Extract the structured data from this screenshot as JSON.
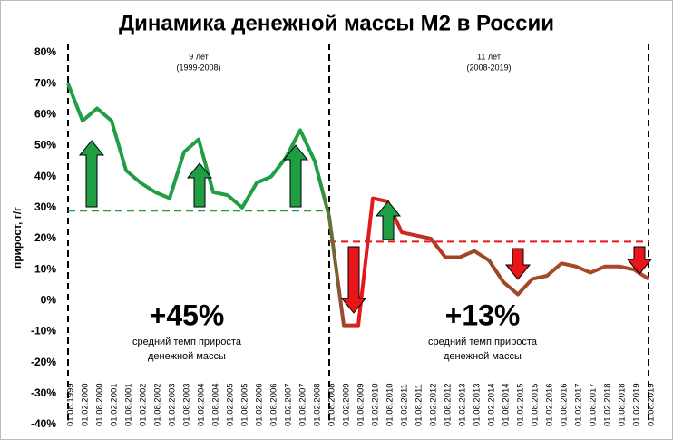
{
  "chart_data": {
    "type": "line",
    "title": "Динамика денежной массы М2 в России",
    "y_label": "прирост, г/г",
    "categories": [
      "01.08.1999",
      "01.02.2000",
      "01.08.2000",
      "01.02.2001",
      "01.08.2001",
      "01.02.2002",
      "01.08.2002",
      "01.02.2003",
      "01.08.2003",
      "01.02.2004",
      "01.08.2004",
      "01.02.2005",
      "01.08.2005",
      "01.02.2006",
      "01.08.2006",
      "01.02.2007",
      "01.08.2007",
      "01.02.2008",
      "01.08.2008",
      "01.02.2009",
      "01.08.2009",
      "01.02.2010",
      "01.08.2010",
      "01.02.2011",
      "01.08.2011",
      "01.02.2012",
      "01.08.2012",
      "01.02.2013",
      "01.08.2013",
      "01.02.2014",
      "01.08.2014",
      "01.02.2015",
      "01.08.2015",
      "01.02.2016",
      "01.08.2016",
      "01.02.2017",
      "01.08.2017",
      "01.02.2018",
      "01.08.2018",
      "01.02.2019",
      "01.08.2019"
    ],
    "values": [
      70,
      58,
      62,
      58,
      42,
      38,
      35,
      33,
      48,
      52,
      35,
      34,
      30,
      38,
      40,
      46,
      55,
      45,
      27,
      -8,
      -8,
      33,
      32,
      22,
      21,
      20,
      14,
      14,
      16,
      13,
      6,
      2,
      7,
      8,
      12,
      11,
      9,
      11,
      11,
      10,
      7
    ],
    "line_colors": [
      "#1f9e44",
      "#1f9e44",
      "#e8151b",
      "#9a4a26",
      "#b0452a"
    ],
    "ylim": [
      -40,
      80
    ],
    "yticks": [
      {
        "value": -40,
        "label": "-40%"
      },
      {
        "value": -30,
        "label": "-30%"
      },
      {
        "value": -20,
        "label": "-20%"
      },
      {
        "value": -10,
        "label": "-10%"
      },
      {
        "value": 0,
        "label": "0%"
      },
      {
        "value": 10,
        "label": "10%"
      },
      {
        "value": 20,
        "label": "20%"
      },
      {
        "value": 30,
        "label": "30%"
      },
      {
        "value": 40,
        "label": "40%"
      },
      {
        "value": 50,
        "label": "50%"
      },
      {
        "value": 60,
        "label": "60%"
      },
      {
        "value": 70,
        "label": "70%"
      },
      {
        "value": 80,
        "label": "80%"
      }
    ],
    "periods": [
      {
        "label": "9 лет",
        "years": "(1999-2008)",
        "average_line": 29,
        "color": "#1f9e44",
        "growth": "+45%",
        "note": [
          "средний темп прироста",
          "денежной массы"
        ]
      },
      {
        "label": "11 лет",
        "years": "(2008-2019)",
        "average_line": 19,
        "color": "#e8151b",
        "growth": "+13%",
        "note": [
          "средний темп прироста",
          "денежной массы"
        ]
      }
    ]
  }
}
